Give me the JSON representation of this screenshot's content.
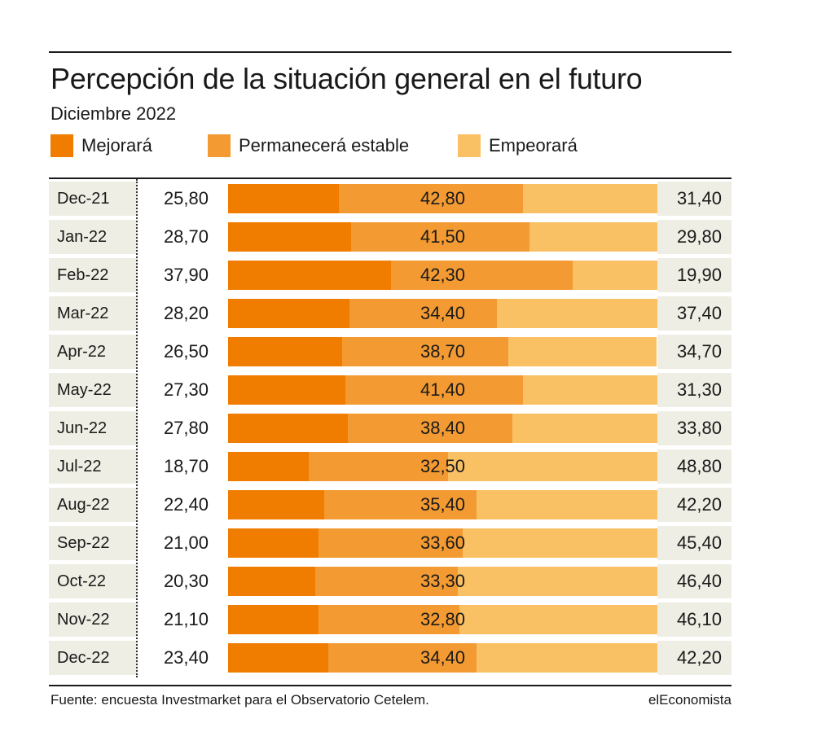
{
  "header": {
    "title": "Percepción de la situación general en el futuro",
    "subtitle": "Diciembre 2022"
  },
  "legend": [
    {
      "label": "Mejorará",
      "color": "#f07c00"
    },
    {
      "label": "Permanecerá estable",
      "color": "#f39a32"
    },
    {
      "label": "Empeorará",
      "color": "#f9c064"
    }
  ],
  "footer": {
    "source": "Fuente: encuesta Investmarket para el Observatorio Cetelem.",
    "brand": "elEconomista"
  },
  "chart_data": {
    "type": "bar",
    "stacked": true,
    "orientation": "horizontal",
    "title": "Percepción de la situación general en el futuro",
    "subtitle": "Diciembre 2022",
    "categories": [
      "Dec-21",
      "Jan-22",
      "Feb-22",
      "Mar-22",
      "Apr-22",
      "May-22",
      "Jun-22",
      "Jul-22",
      "Aug-22",
      "Sep-22",
      "Oct-22",
      "Nov-22",
      "Dec-22"
    ],
    "series": [
      {
        "name": "Mejorará",
        "color": "#f07c00",
        "values": [
          25.8,
          28.7,
          37.9,
          28.2,
          26.5,
          27.3,
          27.8,
          18.7,
          22.4,
          21.0,
          20.3,
          21.1,
          23.4
        ],
        "labels": [
          "25,80",
          "28,70",
          "37,90",
          "28,20",
          "26,50",
          "27,30",
          "27,80",
          "18,70",
          "22,40",
          "21,00",
          "20,30",
          "21,10",
          "23,40"
        ]
      },
      {
        "name": "Permanecerá estable",
        "color": "#f39a32",
        "values": [
          42.8,
          41.5,
          42.3,
          34.4,
          38.7,
          41.4,
          38.4,
          32.5,
          35.4,
          33.6,
          33.3,
          32.8,
          34.4
        ],
        "labels": [
          "42,80",
          "41,50",
          "42,30",
          "34,40",
          "38,70",
          "41,40",
          "38,40",
          "32,50",
          "35,40",
          "33,60",
          "33,30",
          "32,80",
          "34,40"
        ]
      },
      {
        "name": "Empeorará",
        "color": "#f9c064",
        "values": [
          31.4,
          29.8,
          19.9,
          37.4,
          34.7,
          31.3,
          33.8,
          48.8,
          42.2,
          45.4,
          46.4,
          46.1,
          42.2
        ],
        "labels": [
          "31,40",
          "29,80",
          "19,90",
          "37,40",
          "34,70",
          "31,30",
          "33,80",
          "48,80",
          "42,20",
          "45,40",
          "46,40",
          "46,10",
          "42,20"
        ]
      }
    ],
    "xlim": [
      0,
      100
    ],
    "legend_position": "top-left",
    "grid": false
  }
}
